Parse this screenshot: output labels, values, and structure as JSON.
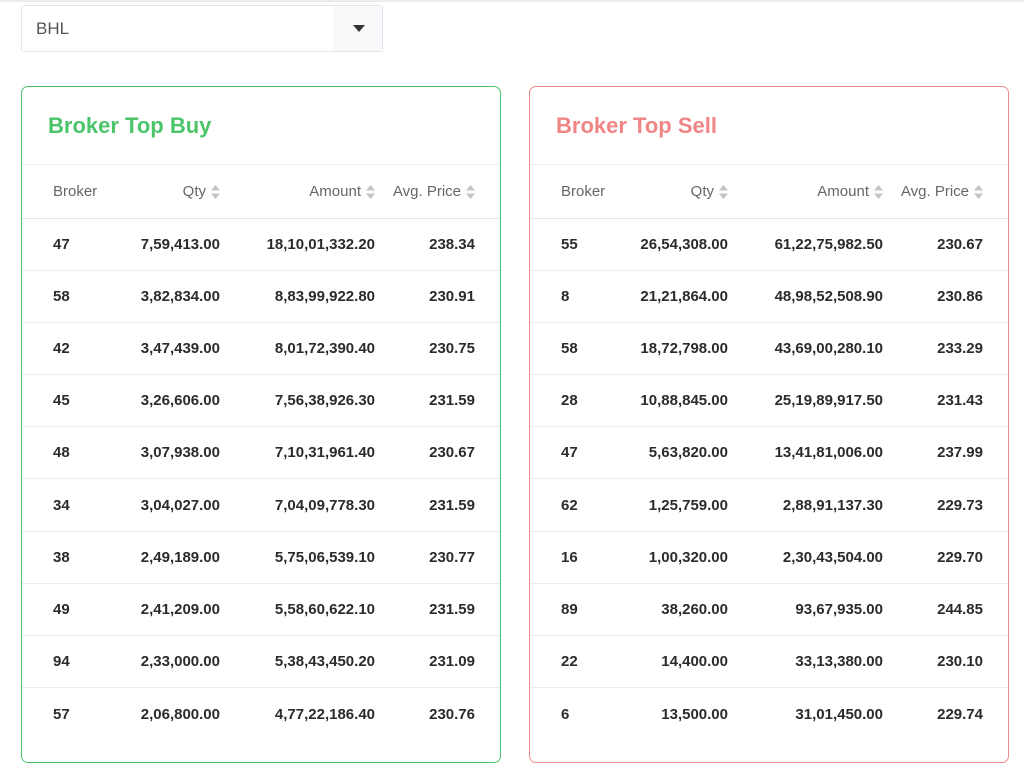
{
  "symbol_select": {
    "value": "BHL",
    "icon": "caret-down-icon"
  },
  "colors": {
    "buy": "#4cc46a",
    "sell": "#f08585"
  },
  "buy": {
    "title": "Broker Top Buy",
    "headers": {
      "broker": "Broker",
      "qty": "Qty",
      "amount": "Amount",
      "avg": "Avg. Price"
    },
    "rows": [
      {
        "broker": "47",
        "qty": "7,59,413.00",
        "amount": "18,10,01,332.20",
        "avg": "238.34"
      },
      {
        "broker": "58",
        "qty": "3,82,834.00",
        "amount": "8,83,99,922.80",
        "avg": "230.91"
      },
      {
        "broker": "42",
        "qty": "3,47,439.00",
        "amount": "8,01,72,390.40",
        "avg": "230.75"
      },
      {
        "broker": "45",
        "qty": "3,26,606.00",
        "amount": "7,56,38,926.30",
        "avg": "231.59"
      },
      {
        "broker": "48",
        "qty": "3,07,938.00",
        "amount": "7,10,31,961.40",
        "avg": "230.67"
      },
      {
        "broker": "34",
        "qty": "3,04,027.00",
        "amount": "7,04,09,778.30",
        "avg": "231.59"
      },
      {
        "broker": "38",
        "qty": "2,49,189.00",
        "amount": "5,75,06,539.10",
        "avg": "230.77"
      },
      {
        "broker": "49",
        "qty": "2,41,209.00",
        "amount": "5,58,60,622.10",
        "avg": "231.59"
      },
      {
        "broker": "94",
        "qty": "2,33,000.00",
        "amount": "5,38,43,450.20",
        "avg": "231.09"
      },
      {
        "broker": "57",
        "qty": "2,06,800.00",
        "amount": "4,77,22,186.40",
        "avg": "230.76"
      }
    ]
  },
  "sell": {
    "title": "Broker Top Sell",
    "headers": {
      "broker": "Broker",
      "qty": "Qty",
      "amount": "Amount",
      "avg": "Avg. Price"
    },
    "rows": [
      {
        "broker": "55",
        "qty": "26,54,308.00",
        "amount": "61,22,75,982.50",
        "avg": "230.67"
      },
      {
        "broker": "8",
        "qty": "21,21,864.00",
        "amount": "48,98,52,508.90",
        "avg": "230.86"
      },
      {
        "broker": "58",
        "qty": "18,72,798.00",
        "amount": "43,69,00,280.10",
        "avg": "233.29"
      },
      {
        "broker": "28",
        "qty": "10,88,845.00",
        "amount": "25,19,89,917.50",
        "avg": "231.43"
      },
      {
        "broker": "47",
        "qty": "5,63,820.00",
        "amount": "13,41,81,006.00",
        "avg": "237.99"
      },
      {
        "broker": "62",
        "qty": "1,25,759.00",
        "amount": "2,88,91,137.30",
        "avg": "229.73"
      },
      {
        "broker": "16",
        "qty": "1,00,320.00",
        "amount": "2,30,43,504.00",
        "avg": "229.70"
      },
      {
        "broker": "89",
        "qty": "38,260.00",
        "amount": "93,67,935.00",
        "avg": "244.85"
      },
      {
        "broker": "22",
        "qty": "14,400.00",
        "amount": "33,13,380.00",
        "avg": "230.10"
      },
      {
        "broker": "6",
        "qty": "13,500.00",
        "amount": "31,01,450.00",
        "avg": "229.74"
      }
    ]
  }
}
